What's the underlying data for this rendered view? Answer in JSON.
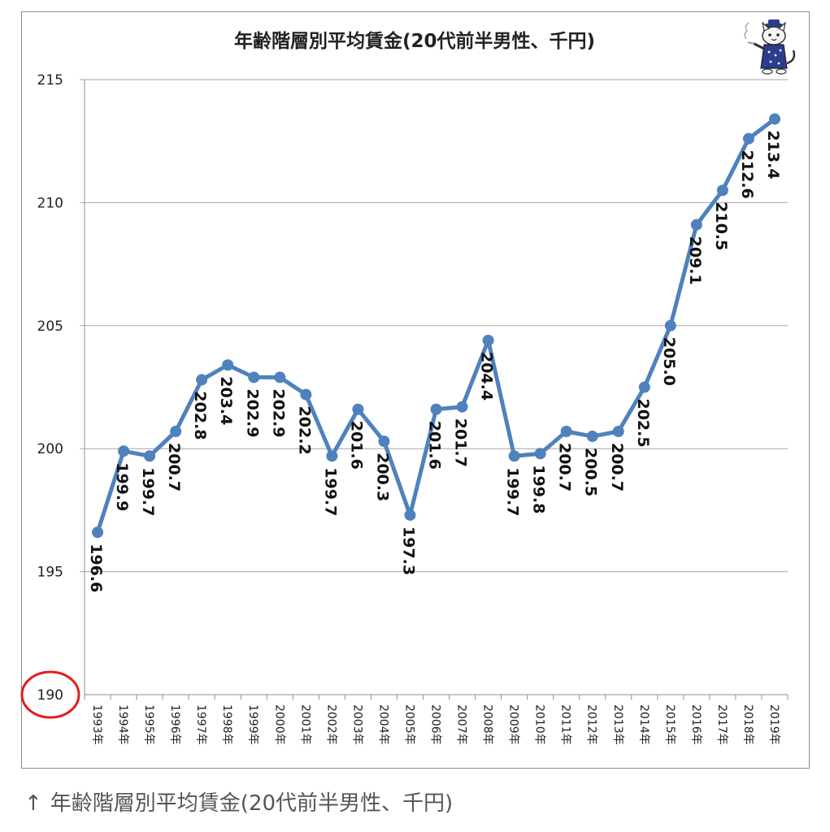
{
  "caption": {
    "arrow": "↑",
    "text": "年齢階層別平均賃金(20代前半男性、千円)"
  },
  "mascot": {
    "icon": "cat-mascot-icon"
  },
  "colors": {
    "series": "#4f81bd",
    "grid": "#a6a6a6",
    "highlight": "#e31c1c"
  },
  "chart_data": {
    "type": "line",
    "title": "年齢階層別平均賃金(20代前半男性、千円)",
    "xlabel": "",
    "ylabel": "",
    "ylim": [
      190,
      215
    ],
    "yticks": [
      190,
      195,
      200,
      205,
      210,
      215
    ],
    "grid": true,
    "legend": "none",
    "categories": [
      "1993年",
      "1994年",
      "1995年",
      "1996年",
      "1997年",
      "1998年",
      "1999年",
      "2000年",
      "2001年",
      "2002年",
      "2003年",
      "2004年",
      "2005年",
      "2006年",
      "2007年",
      "2008年",
      "2009年",
      "2010年",
      "2011年",
      "2012年",
      "2013年",
      "2014年",
      "2015年",
      "2016年",
      "2017年",
      "2018年",
      "2019年"
    ],
    "series": [
      {
        "values": [
          196.6,
          199.9,
          199.7,
          200.7,
          202.8,
          203.4,
          202.9,
          202.9,
          202.2,
          199.7,
          201.6,
          200.3,
          197.3,
          201.6,
          201.7,
          204.4,
          199.7,
          199.8,
          200.7,
          200.5,
          200.7,
          202.5,
          205.0,
          209.1,
          210.5,
          212.6,
          213.4
        ]
      }
    ],
    "data_labels": [
      "196.6",
      "199.9",
      "199.7",
      "200.7",
      "202.8",
      "203.4",
      "202.9",
      "202.9",
      "202.2",
      "199.7",
      "201.6",
      "200.3",
      "197.3",
      "201.6",
      "201.7",
      "204.4",
      "199.7",
      "199.8",
      "200.7",
      "200.5",
      "200.7",
      "202.5",
      "205.0",
      "209.1",
      "210.5",
      "212.6",
      "213.4"
    ],
    "annotations": [
      {
        "type": "circle",
        "target": "y-tick",
        "value": 190
      }
    ]
  }
}
